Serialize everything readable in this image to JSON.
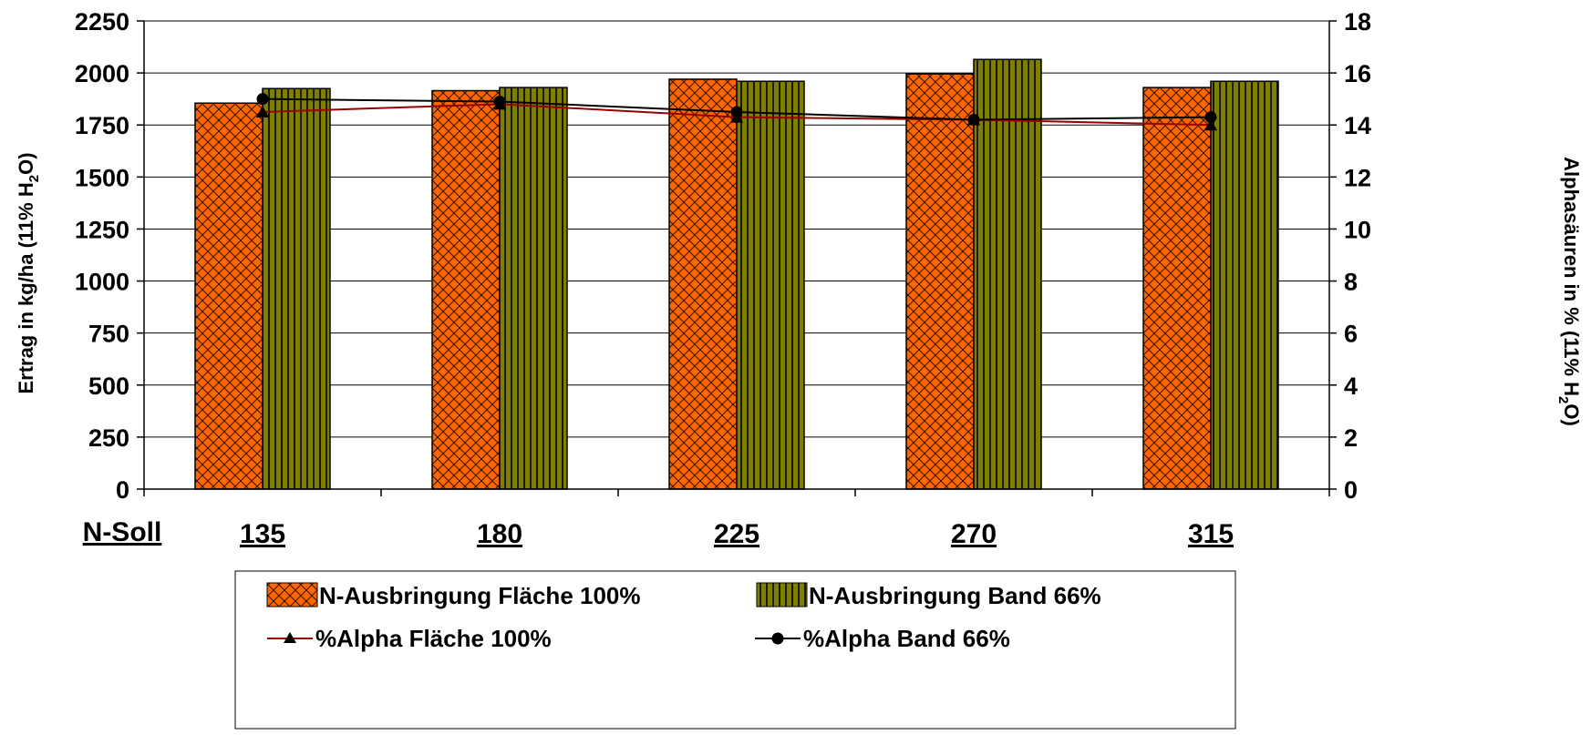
{
  "chart_data": {
    "type": "bar",
    "categories": [
      "135",
      "180",
      "225",
      "270",
      "315"
    ],
    "x_category_label": "N-Soll",
    "bar_series": [
      {
        "name": "N-Ausbringung Fläche 100%",
        "values": [
          1855,
          1915,
          1970,
          1995,
          1930
        ],
        "color": "#FF6600",
        "pattern": "crosshatch"
      },
      {
        "name": "N-Ausbringung Band 66%",
        "values": [
          1925,
          1930,
          1960,
          2065,
          1960
        ],
        "color": "#808000",
        "pattern": "vertical-stripes"
      }
    ],
    "line_series": [
      {
        "name": "%Alpha Fläche 100%",
        "values": [
          14.5,
          14.8,
          14.3,
          14.2,
          14.0
        ],
        "color": "#990000",
        "marker": "triangle",
        "axis": "right"
      },
      {
        "name": "%Alpha Band 66%",
        "values": [
          15.0,
          14.9,
          14.5,
          14.2,
          14.3
        ],
        "color": "#000000",
        "marker": "circle",
        "axis": "right"
      }
    ],
    "y_left": {
      "ticks": [
        0,
        250,
        500,
        750,
        1000,
        1250,
        1500,
        1750,
        2000,
        2250
      ],
      "ylim": [
        0,
        2250
      ]
    },
    "y_right": {
      "ticks": [
        0,
        2,
        4,
        6,
        8,
        10,
        12,
        14,
        16,
        18
      ],
      "ylim": [
        0,
        18
      ]
    },
    "grid": "horizontal major gridlines",
    "legend": "bottom"
  },
  "axis_titles": {
    "left_main": "Ertrag in kg/ha (11% H",
    "left_sub": "2",
    "left_end": "O)",
    "right_main": "Alphasäuren in % (11% H",
    "right_sub": "2",
    "right_end": "O)"
  }
}
